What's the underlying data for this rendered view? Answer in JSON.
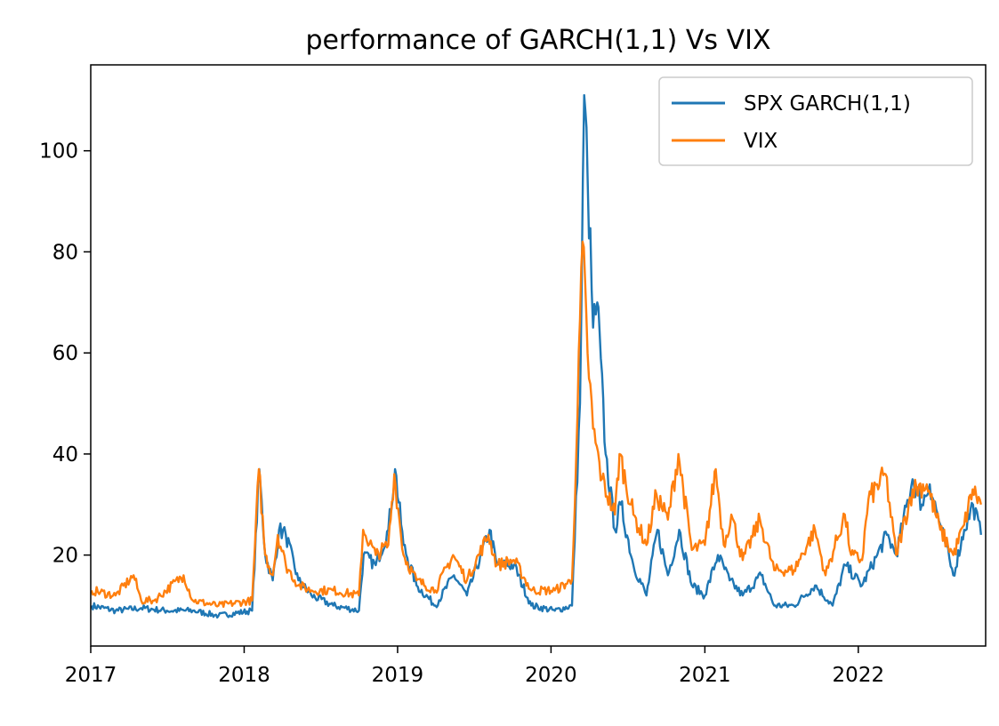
{
  "chart_data": {
    "type": "line",
    "title": "performance of GARCH(1,1) Vs VIX",
    "xlabel": "",
    "ylabel": "",
    "xlim": [
      "2017-01-01",
      "2022-10-31"
    ],
    "ylim": [
      2,
      117
    ],
    "x_ticks": [
      "2017",
      "2018",
      "2019",
      "2020",
      "2021",
      "2022"
    ],
    "y_ticks": [
      20,
      40,
      60,
      80,
      100
    ],
    "grid": false,
    "legend_position": "top-right",
    "colors": {
      "garch": "#1f77b4",
      "vix": "#ff7f0e"
    },
    "series": [
      {
        "name": "SPX GARCH(1,1)",
        "color": "#1f77b4",
        "points": [
          [
            "2017-01-03",
            10
          ],
          [
            "2017-03-01",
            9
          ],
          [
            "2017-05-01",
            9.5
          ],
          [
            "2017-07-01",
            9
          ],
          [
            "2017-09-01",
            9
          ],
          [
            "2017-11-01",
            8
          ],
          [
            "2018-01-20",
            9
          ],
          [
            "2018-02-06",
            37
          ],
          [
            "2018-02-20",
            20
          ],
          [
            "2018-03-10",
            15
          ],
          [
            "2018-03-25",
            25
          ],
          [
            "2018-04-10",
            24
          ],
          [
            "2018-05-10",
            15
          ],
          [
            "2018-06-10",
            12
          ],
          [
            "2018-08-01",
            10
          ],
          [
            "2018-10-01",
            9
          ],
          [
            "2018-10-12",
            20
          ],
          [
            "2018-11-10",
            18
          ],
          [
            "2018-12-10",
            25
          ],
          [
            "2018-12-26",
            37
          ],
          [
            "2019-01-15",
            22
          ],
          [
            "2019-02-15",
            14
          ],
          [
            "2019-04-01",
            10
          ],
          [
            "2019-05-15",
            16
          ],
          [
            "2019-06-15",
            12
          ],
          [
            "2019-08-08",
            25
          ],
          [
            "2019-08-25",
            18
          ],
          [
            "2019-10-05",
            18
          ],
          [
            "2019-11-15",
            10
          ],
          [
            "2020-01-10",
            9
          ],
          [
            "2020-02-20",
            10
          ],
          [
            "2020-03-10",
            50
          ],
          [
            "2020-03-20",
            111
          ],
          [
            "2020-03-28",
            95
          ],
          [
            "2020-04-10",
            65
          ],
          [
            "2020-04-20",
            70
          ],
          [
            "2020-05-10",
            40
          ],
          [
            "2020-06-01",
            25
          ],
          [
            "2020-06-15",
            30
          ],
          [
            "2020-07-15",
            18
          ],
          [
            "2020-08-15",
            12
          ],
          [
            "2020-09-10",
            25
          ],
          [
            "2020-10-05",
            16
          ],
          [
            "2020-11-01",
            25
          ],
          [
            "2020-12-01",
            14
          ],
          [
            "2021-01-01",
            12
          ],
          [
            "2021-02-01",
            20
          ],
          [
            "2021-03-01",
            15
          ],
          [
            "2021-04-01",
            12
          ],
          [
            "2021-05-15",
            16
          ],
          [
            "2021-06-15",
            10
          ],
          [
            "2021-08-01",
            10
          ],
          [
            "2021-09-20",
            14
          ],
          [
            "2021-11-01",
            10
          ],
          [
            "2021-12-01",
            18
          ],
          [
            "2022-01-10",
            14
          ],
          [
            "2022-02-15",
            20
          ],
          [
            "2022-03-10",
            24
          ],
          [
            "2022-04-01",
            20
          ],
          [
            "2022-05-10",
            35
          ],
          [
            "2022-06-01",
            30
          ],
          [
            "2022-06-20",
            34
          ],
          [
            "2022-07-15",
            26
          ],
          [
            "2022-08-15",
            16
          ],
          [
            "2022-09-10",
            25
          ],
          [
            "2022-10-01",
            30
          ],
          [
            "2022-10-20",
            24
          ]
        ]
      },
      {
        "name": "VIX",
        "color": "#ff7f0e",
        "points": [
          [
            "2017-01-03",
            13
          ],
          [
            "2017-03-01",
            12
          ],
          [
            "2017-04-13",
            16
          ],
          [
            "2017-05-01",
            11
          ],
          [
            "2017-06-01",
            11
          ],
          [
            "2017-08-10",
            16
          ],
          [
            "2017-09-01",
            11
          ],
          [
            "2017-11-01",
            10
          ],
          [
            "2018-01-20",
            11
          ],
          [
            "2018-02-05",
            37
          ],
          [
            "2018-02-20",
            20
          ],
          [
            "2018-03-10",
            16
          ],
          [
            "2018-03-22",
            24
          ],
          [
            "2018-04-10",
            18
          ],
          [
            "2018-05-10",
            14
          ],
          [
            "2018-06-10",
            13
          ],
          [
            "2018-08-01",
            13
          ],
          [
            "2018-10-01",
            12
          ],
          [
            "2018-10-11",
            25
          ],
          [
            "2018-11-10",
            20
          ],
          [
            "2018-12-10",
            22
          ],
          [
            "2018-12-24",
            36
          ],
          [
            "2019-01-15",
            20
          ],
          [
            "2019-02-15",
            15
          ],
          [
            "2019-04-01",
            13
          ],
          [
            "2019-05-13",
            20
          ],
          [
            "2019-06-15",
            15
          ],
          [
            "2019-08-05",
            24
          ],
          [
            "2019-08-25",
            18
          ],
          [
            "2019-10-05",
            19
          ],
          [
            "2019-11-15",
            13
          ],
          [
            "2020-01-10",
            13
          ],
          [
            "2020-02-20",
            15
          ],
          [
            "2020-03-01",
            40
          ],
          [
            "2020-03-16",
            82
          ],
          [
            "2020-03-28",
            60
          ],
          [
            "2020-04-10",
            45
          ],
          [
            "2020-05-01",
            35
          ],
          [
            "2020-06-01",
            28
          ],
          [
            "2020-06-12",
            40
          ],
          [
            "2020-07-15",
            28
          ],
          [
            "2020-08-15",
            22
          ],
          [
            "2020-09-08",
            32
          ],
          [
            "2020-10-05",
            27
          ],
          [
            "2020-10-30",
            40
          ],
          [
            "2020-12-01",
            21
          ],
          [
            "2021-01-01",
            22
          ],
          [
            "2021-01-27",
            37
          ],
          [
            "2021-02-15",
            22
          ],
          [
            "2021-03-05",
            28
          ],
          [
            "2021-04-01",
            19
          ],
          [
            "2021-05-12",
            27
          ],
          [
            "2021-06-15",
            17
          ],
          [
            "2021-08-01",
            17
          ],
          [
            "2021-09-20",
            25
          ],
          [
            "2021-10-15",
            16
          ],
          [
            "2021-11-30",
            28
          ],
          [
            "2021-12-15",
            20
          ],
          [
            "2022-01-10",
            19
          ],
          [
            "2022-01-25",
            31
          ],
          [
            "2022-03-07",
            36
          ],
          [
            "2022-04-01",
            20
          ],
          [
            "2022-05-10",
            33
          ],
          [
            "2022-06-13",
            34
          ],
          [
            "2022-07-15",
            25
          ],
          [
            "2022-08-15",
            20
          ],
          [
            "2022-09-10",
            26
          ],
          [
            "2022-09-30",
            33
          ],
          [
            "2022-10-20",
            30
          ]
        ]
      }
    ]
  }
}
